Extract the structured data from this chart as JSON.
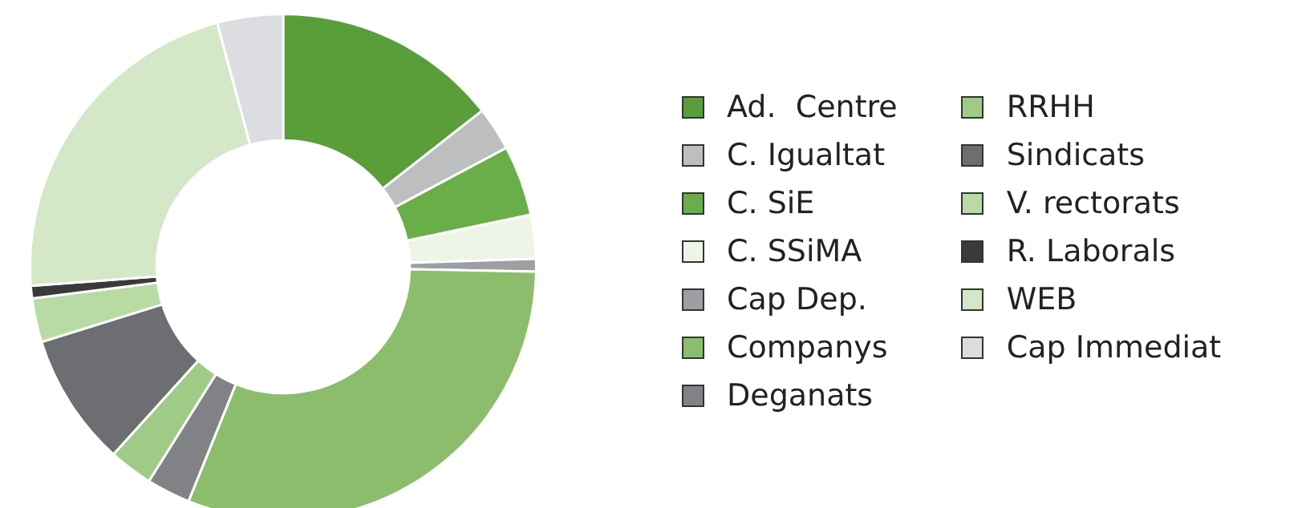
{
  "chart_data": {
    "type": "donut",
    "categories": [
      "Ad.  Centre",
      "C. Igualtat",
      "C. SiE",
      "C. SSiMA",
      "Cap Dep.",
      "Companys",
      "Deganats",
      "RRHH",
      "Sindicats",
      "V. rectorats",
      "R. Laborals",
      "WEB",
      "Cap Immediat"
    ],
    "values": [
      14.4,
      2.8,
      4.5,
      2.8,
      0.8,
      30.8,
      2.8,
      2.8,
      8.5,
      2.8,
      0.8,
      22,
      4.2
    ],
    "colors": [
      "#5a9e3a",
      "#bdbec0",
      "#6aae4a",
      "#eef5e6",
      "#9d9fa2",
      "#8cbd6c",
      "#808285",
      "#9fcb86",
      "#6d6e71",
      "#b8dba4",
      "#3a3a3a",
      "#d4e7c6",
      "#dcdde0"
    ],
    "legend": "right"
  }
}
